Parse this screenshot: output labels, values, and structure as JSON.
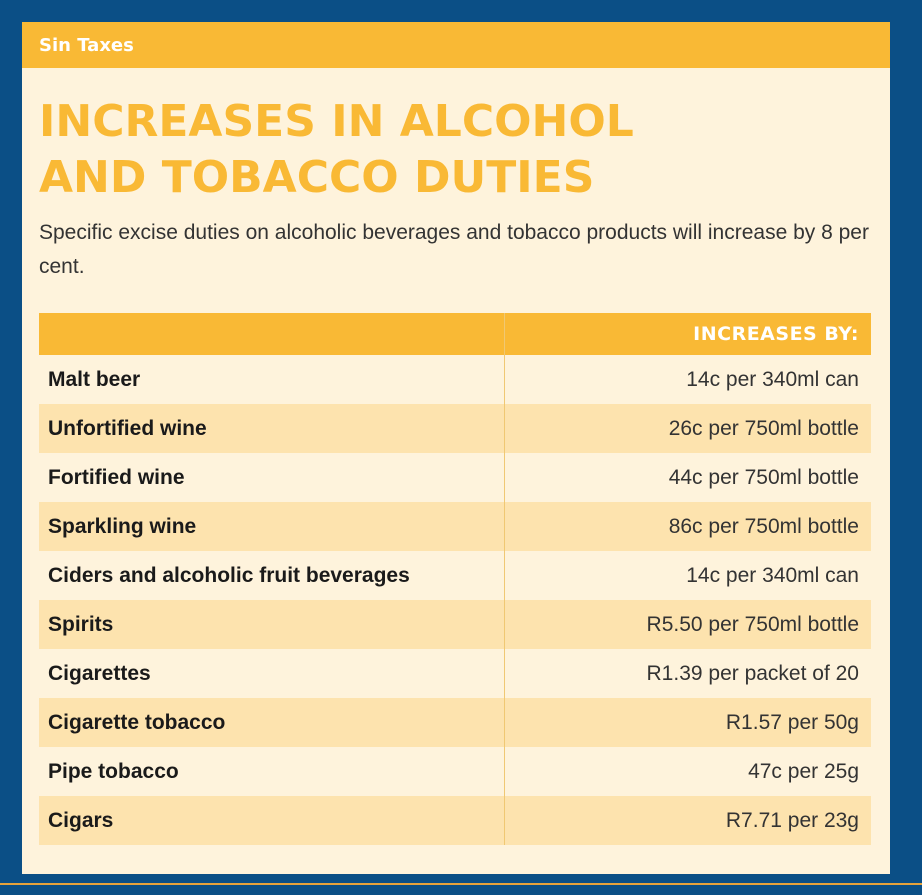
{
  "section": {
    "label": "Sin Taxes"
  },
  "title": {
    "line1": "INCREASES IN ALCOHOL",
    "line2": "AND TOBACCO DUTIES"
  },
  "intro": "Specific excise duties on alcoholic beverages and tobacco products will increase by 8 per cent.",
  "table": {
    "header": "INCREASES BY:",
    "rows": [
      {
        "item": "Malt beer",
        "increase": "14c per 340ml can"
      },
      {
        "item": "Unfortified wine",
        "increase": "26c per 750ml bottle"
      },
      {
        "item": "Fortified wine",
        "increase": "44c per 750ml bottle"
      },
      {
        "item": "Sparkling wine",
        "increase": "86c per 750ml bottle"
      },
      {
        "item": "Ciders and alcoholic fruit beverages",
        "increase": "14c per 340ml can"
      },
      {
        "item": "Spirits",
        "increase": "R5.50 per 750ml bottle"
      },
      {
        "item": "Cigarettes",
        "increase": "R1.39 per packet of 20"
      },
      {
        "item": "Cigarette tobacco",
        "increase": "R1.57 per 50g"
      },
      {
        "item": "Pipe tobacco",
        "increase": "47c per 25g"
      },
      {
        "item": "Cigars",
        "increase": "R7.71 per 23g"
      }
    ]
  },
  "colors": {
    "accent": "#f9b935",
    "background": "#0b4f86",
    "card": "#fef3dc",
    "row_alt": "#fde3ae"
  }
}
